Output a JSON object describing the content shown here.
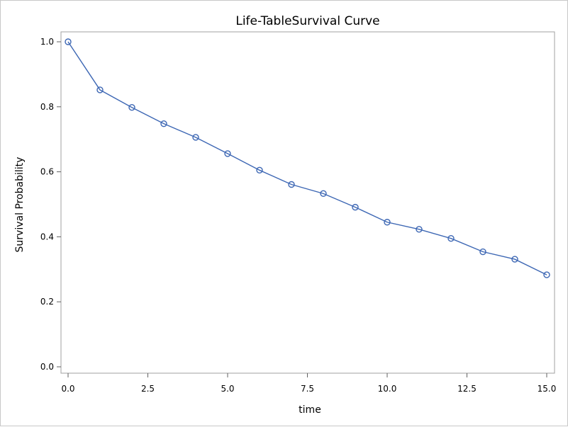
{
  "chart_data": {
    "type": "line",
    "title": "Life-TableSurvival Curve",
    "xlabel": "time",
    "ylabel": "Survival Probability",
    "xlim": [
      0,
      15
    ],
    "ylim": [
      0,
      1
    ],
    "x_ticks": [
      "0.0",
      "2.5",
      "5.0",
      "7.5",
      "10.0",
      "12.5",
      "15.0"
    ],
    "y_ticks": [
      "0.0",
      "0.2",
      "0.4",
      "0.6",
      "0.8",
      "1.0"
    ],
    "grid": false,
    "legend": "none",
    "series": [
      {
        "color": "#3d67b4",
        "marker": "circle-open",
        "x": [
          0,
          1,
          2,
          3,
          4,
          5,
          6,
          7,
          8,
          9,
          10,
          11,
          12,
          13,
          14,
          15
        ],
        "y": [
          1.0,
          0.852,
          0.798,
          0.748,
          0.706,
          0.656,
          0.605,
          0.561,
          0.533,
          0.491,
          0.445,
          0.423,
          0.395,
          0.354,
          0.331,
          0.283
        ]
      }
    ]
  }
}
